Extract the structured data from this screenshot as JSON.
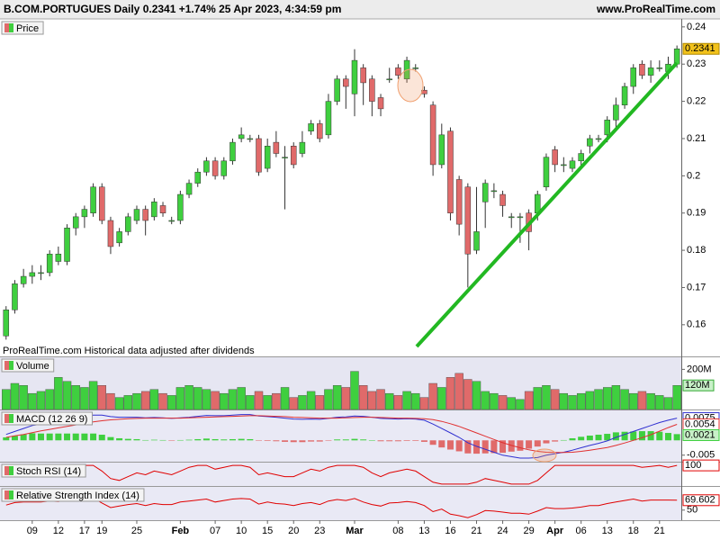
{
  "header": {
    "title": "B.COM.PORTUGUES Daily 0.2341 +1.74% 25 Apr 2023, 4:34:59 pm",
    "site": "www.ProRealTime.com"
  },
  "chart_data": [
    {
      "type": "candlestick",
      "title": "Price",
      "note": "ProRealTime.com  Historical data adjusted after dividends",
      "open": [
        0.157,
        0.164,
        0.171,
        0.173,
        0.174,
        0.174,
        0.177,
        0.177,
        0.186,
        0.189,
        0.19,
        0.197,
        0.188,
        0.182,
        0.185,
        0.188,
        0.191,
        0.189,
        0.192,
        0.188,
        0.188,
        0.195,
        0.198,
        0.201,
        0.204,
        0.2,
        0.204,
        0.21,
        0.21,
        0.21,
        0.202,
        0.209,
        0.205,
        0.208,
        0.206,
        0.212,
        0.214,
        0.211,
        0.22,
        0.226,
        0.222,
        0.229,
        0.226,
        0.221,
        0.226,
        0.229,
        0.226,
        0.229,
        0.223,
        0.219,
        0.203,
        0.212,
        0.199,
        0.197,
        0.18,
        0.193,
        0.196,
        0.195,
        0.189,
        0.189,
        0.19,
        0.19,
        0.197,
        0.207,
        0.203,
        0.202,
        0.204,
        0.208,
        0.21,
        0.211,
        0.215,
        0.219,
        0.224,
        0.23,
        0.227,
        0.229,
        0.228,
        0.23
      ],
      "high": [
        0.165,
        0.172,
        0.175,
        0.176,
        0.176,
        0.18,
        0.181,
        0.187,
        0.19,
        0.192,
        0.198,
        0.198,
        0.189,
        0.186,
        0.19,
        0.192,
        0.192,
        0.194,
        0.193,
        0.189,
        0.196,
        0.199,
        0.202,
        0.205,
        0.205,
        0.205,
        0.21,
        0.213,
        0.211,
        0.211,
        0.21,
        0.212,
        0.208,
        0.209,
        0.212,
        0.215,
        0.215,
        0.222,
        0.227,
        0.227,
        0.234,
        0.23,
        0.227,
        0.222,
        0.229,
        0.23,
        0.232,
        0.23,
        0.224,
        0.22,
        0.214,
        0.213,
        0.2,
        0.198,
        0.197,
        0.199,
        0.198,
        0.196,
        0.19,
        0.19,
        0.191,
        0.196,
        0.206,
        0.208,
        0.205,
        0.205,
        0.207,
        0.211,
        0.211,
        0.216,
        0.221,
        0.225,
        0.23,
        0.231,
        0.231,
        0.231,
        0.232,
        0.235
      ],
      "low": [
        0.156,
        0.163,
        0.17,
        0.171,
        0.172,
        0.173,
        0.176,
        0.176,
        0.184,
        0.186,
        0.189,
        0.187,
        0.179,
        0.181,
        0.184,
        0.187,
        0.184,
        0.188,
        0.189,
        0.187,
        0.187,
        0.194,
        0.197,
        0.2,
        0.199,
        0.199,
        0.203,
        0.209,
        0.209,
        0.2,
        0.201,
        0.205,
        0.191,
        0.202,
        0.205,
        0.211,
        0.209,
        0.21,
        0.219,
        0.218,
        0.216,
        0.219,
        0.216,
        0.216,
        0.225,
        0.226,
        0.225,
        0.228,
        0.221,
        0.2,
        0.202,
        0.188,
        0.184,
        0.17,
        0.179,
        0.186,
        0.194,
        0.189,
        0.186,
        0.182,
        0.18,
        0.188,
        0.196,
        0.201,
        0.201,
        0.201,
        0.202,
        0.206,
        0.209,
        0.209,
        0.213,
        0.218,
        0.222,
        0.226,
        0.225,
        0.228,
        0.226,
        0.229
      ],
      "close": [
        0.164,
        0.171,
        0.173,
        0.174,
        0.174,
        0.179,
        0.179,
        0.186,
        0.189,
        0.191,
        0.197,
        0.188,
        0.181,
        0.185,
        0.189,
        0.191,
        0.188,
        0.193,
        0.19,
        0.188,
        0.195,
        0.198,
        0.201,
        0.204,
        0.2,
        0.204,
        0.209,
        0.211,
        0.21,
        0.201,
        0.208,
        0.206,
        0.205,
        0.203,
        0.209,
        0.214,
        0.21,
        0.22,
        0.226,
        0.224,
        0.231,
        0.225,
        0.22,
        0.218,
        0.226,
        0.227,
        0.231,
        0.229,
        0.222,
        0.203,
        0.211,
        0.19,
        0.187,
        0.179,
        0.185,
        0.198,
        0.196,
        0.192,
        0.189,
        0.189,
        0.185,
        0.195,
        0.205,
        0.203,
        0.203,
        0.204,
        0.206,
        0.21,
        0.21,
        0.215,
        0.219,
        0.224,
        0.229,
        0.227,
        0.229,
        0.229,
        0.23,
        0.2341
      ],
      "up_color": "#3fcf3f",
      "down_color": "#e06a6a",
      "last_color": "#f2c21b",
      "ylim": [
        0.1515,
        0.2419
      ],
      "yticks": [
        0.24,
        0.23,
        0.22,
        0.21,
        0.2,
        0.19,
        0.18,
        0.17,
        0.16
      ],
      "xlim": [
        -0.7,
        77.5
      ],
      "xticks": [
        {
          "value": 3,
          "label": "09"
        },
        {
          "value": 6,
          "label": "12"
        },
        {
          "value": 9,
          "label": "17"
        },
        {
          "value": 11,
          "label": "19"
        },
        {
          "value": 15,
          "label": "25"
        },
        {
          "value": 20,
          "label": "Feb"
        },
        {
          "value": 24,
          "label": "07"
        },
        {
          "value": 27,
          "label": "10"
        },
        {
          "value": 30,
          "label": "15"
        },
        {
          "value": 33,
          "label": "20"
        },
        {
          "value": 36,
          "label": "23"
        },
        {
          "value": 40,
          "label": "Mar"
        },
        {
          "value": 45,
          "label": "08"
        },
        {
          "value": 48,
          "label": "13"
        },
        {
          "value": 51,
          "label": "16"
        },
        {
          "value": 54,
          "label": "21"
        },
        {
          "value": 57,
          "label": "24"
        },
        {
          "value": 60,
          "label": "29"
        },
        {
          "value": 63,
          "label": "Apr"
        },
        {
          "value": 66,
          "label": "06"
        },
        {
          "value": 69,
          "label": "13"
        },
        {
          "value": 72,
          "label": "18"
        },
        {
          "value": 75,
          "label": "21"
        }
      ]
    },
    {
      "type": "bar",
      "title": "Volume",
      "values": [
        100,
        130,
        120,
        80,
        90,
        100,
        160,
        140,
        120,
        110,
        140,
        120,
        80,
        60,
        70,
        80,
        90,
        100,
        80,
        70,
        110,
        120,
        110,
        100,
        90,
        80,
        100,
        110,
        70,
        90,
        70,
        80,
        110,
        60,
        70,
        90,
        70,
        100,
        120,
        110,
        190,
        120,
        90,
        100,
        80,
        70,
        90,
        80,
        60,
        130,
        110,
        160,
        180,
        150,
        140,
        90,
        80,
        70,
        60,
        50,
        90,
        110,
        120,
        100,
        80,
        70,
        80,
        90,
        100,
        110,
        120,
        100,
        80,
        90,
        80,
        70,
        60,
        120
      ],
      "last_label": "120M",
      "up_color": "#3fcf3f",
      "down_color": "#e06a6a",
      "ylim": [
        0,
        260
      ],
      "yticks": [
        {
          "value": 200,
          "label": "200M"
        }
      ]
    },
    {
      "type": "macd",
      "title": "MACD (12 26 9)",
      "series": [
        {
          "color": "#3030d0",
          "values": [
            0.002,
            0.003,
            0.004,
            0.005,
            0.0055,
            0.006,
            0.0065,
            0.007,
            0.0075,
            0.008,
            0.0085,
            0.0085,
            0.008,
            0.0078,
            0.0078,
            0.0078,
            0.0076,
            0.0077,
            0.0076,
            0.0074,
            0.0076,
            0.0078,
            0.0081,
            0.0084,
            0.0083,
            0.0083,
            0.0085,
            0.0087,
            0.0087,
            0.0082,
            0.008,
            0.0078,
            0.0075,
            0.0072,
            0.0071,
            0.0072,
            0.0071,
            0.0074,
            0.0078,
            0.0079,
            0.0082,
            0.0081,
            0.0078,
            0.0074,
            0.0073,
            0.0072,
            0.0073,
            0.0072,
            0.0068,
            0.0055,
            0.004,
            0.0025,
            0.001,
            -0.0008,
            -0.002,
            -0.003,
            -0.004,
            -0.005,
            -0.0055,
            -0.006,
            -0.006,
            -0.0058,
            -0.005,
            -0.0045,
            -0.004,
            -0.0033,
            -0.0025,
            -0.0017,
            -0.001,
            -0.0002,
            0.001,
            0.002,
            0.003,
            0.004,
            0.005,
            0.006,
            0.0068,
            0.0075
          ]
        },
        {
          "color": "#e03030",
          "values": [
            0.001,
            0.0015,
            0.002,
            0.0026,
            0.0032,
            0.0037,
            0.0042,
            0.0047,
            0.0052,
            0.0057,
            0.0062,
            0.0066,
            0.0069,
            0.0071,
            0.0073,
            0.0074,
            0.0075,
            0.0075,
            0.0075,
            0.0075,
            0.0075,
            0.0076,
            0.0077,
            0.0078,
            0.0079,
            0.008,
            0.0081,
            0.0082,
            0.0083,
            0.0083,
            0.0082,
            0.0081,
            0.008,
            0.0078,
            0.0077,
            0.0076,
            0.0075,
            0.0075,
            0.0075,
            0.0076,
            0.0077,
            0.0078,
            0.0078,
            0.0077,
            0.0076,
            0.0075,
            0.0075,
            0.0074,
            0.0073,
            0.007,
            0.0064,
            0.0056,
            0.0047,
            0.0036,
            0.0025,
            0.0014,
            0.0003,
            -0.0008,
            -0.0017,
            -0.0025,
            -0.0032,
            -0.0037,
            -0.004,
            -0.0041,
            -0.0041,
            -0.004,
            -0.0037,
            -0.0033,
            -0.0029,
            -0.0024,
            -0.0017,
            -0.0009,
            0,
            0.0009,
            0.0019,
            0.0031,
            0.0043,
            0.0054
          ]
        }
      ],
      "histogram": {
        "up_color": "#3fcf3f",
        "down_color": "#e06a6a",
        "values": [
          0.001,
          0.0015,
          0.002,
          0.0024,
          0.0023,
          0.0023,
          0.0023,
          0.0023,
          0.0023,
          0.0023,
          0.0023,
          0.0019,
          0.0011,
          0.0007,
          0.0005,
          0.0004,
          0.0001,
          0.0002,
          0.0001,
          -0.0001,
          0.0001,
          0.0002,
          0.0004,
          0.0006,
          0.0004,
          0.0003,
          0.0004,
          0.0005,
          0.0004,
          -0.0001,
          -0.0002,
          -0.0003,
          -0.0005,
          -0.0006,
          -0.0006,
          -0.0004,
          -0.0004,
          -0.0001,
          0.0003,
          0.0003,
          0.0005,
          0.0003,
          0,
          -0.0003,
          -0.0003,
          -0.0003,
          -0.0002,
          -0.0002,
          -0.0005,
          -0.0015,
          -0.0024,
          -0.0031,
          -0.0037,
          -0.0044,
          -0.0045,
          -0.0044,
          -0.0043,
          -0.0042,
          -0.0038,
          -0.0035,
          -0.0028,
          -0.0021,
          -0.001,
          -0.0004,
          0.0001,
          0.0007,
          0.0012,
          0.0016,
          0.0019,
          0.0022,
          0.0027,
          0.0029,
          0.003,
          0.0031,
          0.0031,
          0.0029,
          0.0025,
          0.0021
        ]
      },
      "ylim": [
        -0.0072,
        0.0101
      ],
      "yticks": [
        -0.005
      ]
    },
    {
      "type": "line",
      "title": "Stoch RSI (14)",
      "color": "#e00000",
      "values": [
        60,
        80,
        90,
        95,
        95,
        100,
        100,
        100,
        100,
        100,
        100,
        70,
        30,
        20,
        40,
        60,
        50,
        70,
        60,
        50,
        70,
        90,
        100,
        100,
        80,
        90,
        100,
        100,
        90,
        50,
        60,
        50,
        40,
        40,
        60,
        80,
        70,
        90,
        100,
        100,
        100,
        90,
        60,
        40,
        60,
        70,
        80,
        70,
        40,
        10,
        0,
        0,
        0,
        0,
        10,
        30,
        20,
        10,
        0,
        0,
        0,
        20,
        60,
        100,
        100,
        100,
        100,
        100,
        100,
        100,
        100,
        100,
        100,
        90,
        95,
        100,
        90,
        100
      ],
      "ylim": [
        -10,
        115
      ]
    },
    {
      "type": "line",
      "title": "Relative Strength Index (14)",
      "color": "#e00000",
      "values": [
        60,
        65,
        66,
        66,
        66,
        68,
        67,
        70,
        71,
        72,
        74,
        64,
        55,
        58,
        61,
        63,
        59,
        63,
        61,
        61,
        66,
        68,
        70,
        72,
        66,
        69,
        72,
        73,
        72,
        62,
        66,
        63,
        62,
        59,
        63,
        65,
        61,
        68,
        71,
        69,
        73,
        66,
        61,
        58,
        64,
        65,
        67,
        65,
        59,
        47,
        52,
        42,
        39,
        35,
        41,
        49,
        48,
        46,
        44,
        44,
        42,
        48,
        55,
        53,
        53,
        54,
        56,
        59,
        59,
        63,
        66,
        69,
        72,
        68,
        70,
        70,
        70,
        69.602
      ],
      "ylim": [
        30,
        96
      ],
      "yticks": [
        50
      ]
    }
  ]
}
